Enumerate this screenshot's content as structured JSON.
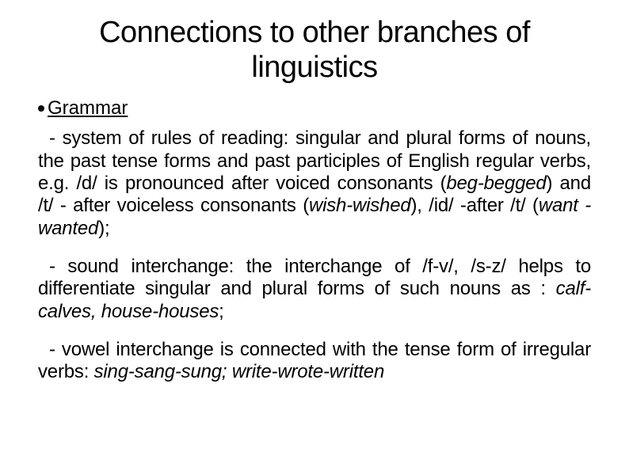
{
  "title": "Connections to other branches of linguistics",
  "bullet_label": "Grammar",
  "para1_html": "<span class=\"indent\"></span>- system of rules of reading: singular and plural forms of nouns, the past tense forms and past participles of English regular verbs, e.g. /d/ is pronounced after voiced consonants (<span class=\"italic\">beg-begged</span>) and /t/ - after voiceless consonants (<span class=\"italic\">wish-wished</span>), /id/ -after /t/ (<span class=\"italic\">want -wanted</span>);",
  "para2_html": "<span class=\"indent\"></span>- sound interchange: the interchange of /f-v/, /s-z/ helps to differentiate singular and plural forms of such nouns as : <span class=\"italic\">calf-calves, house-houses</span>;",
  "para3_html": "<span class=\"indent\"></span>- vowel interchange is connected with the tense form of irregular verbs: <span class=\"italic\">sing-sang-sung; write-wrote-written</span>",
  "colors": {
    "text": "#000000",
    "background": "#ffffff"
  },
  "typography": {
    "title_fontsize": 38,
    "body_fontsize": 24,
    "font_family": "Arial"
  }
}
